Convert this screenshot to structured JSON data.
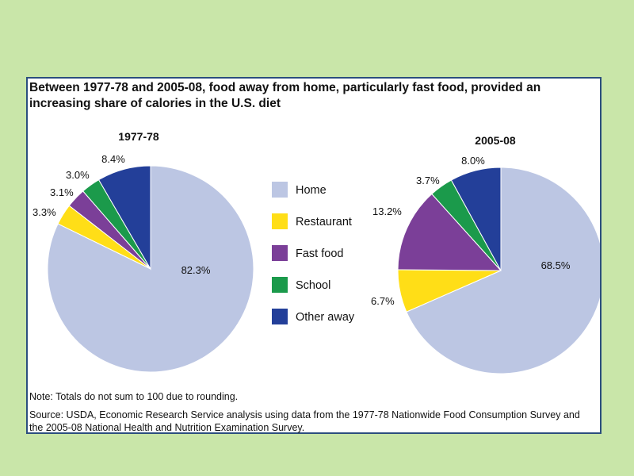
{
  "chart_data": {
    "type": "pie",
    "title": "Between 1977-78 and 2005-08, food away from home, particularly fast food, provided an increasing share of calories in the U.S. diet",
    "categories": [
      "Home",
      "Restaurant",
      "Fast food",
      "School",
      "Other away"
    ],
    "colors": [
      "#bcc6e3",
      "#ffde17",
      "#7b3f98",
      "#1b9a4b",
      "#233f99"
    ],
    "series": [
      {
        "name": "1977-78",
        "values": [
          82.3,
          3.3,
          3.1,
          3.0,
          8.4
        ]
      },
      {
        "name": "2005-08",
        "values": [
          68.5,
          6.7,
          13.2,
          3.7,
          8.0
        ]
      }
    ],
    "legend_position": "center",
    "note": "Note: Totals do not sum to 100 due to rounding.",
    "source": "Source: USDA, Economic Research Service analysis using data from the 1977-78 Nationwide Food Consumption Survey and the 2005-08 National Health and Nutrition Examination Survey."
  }
}
